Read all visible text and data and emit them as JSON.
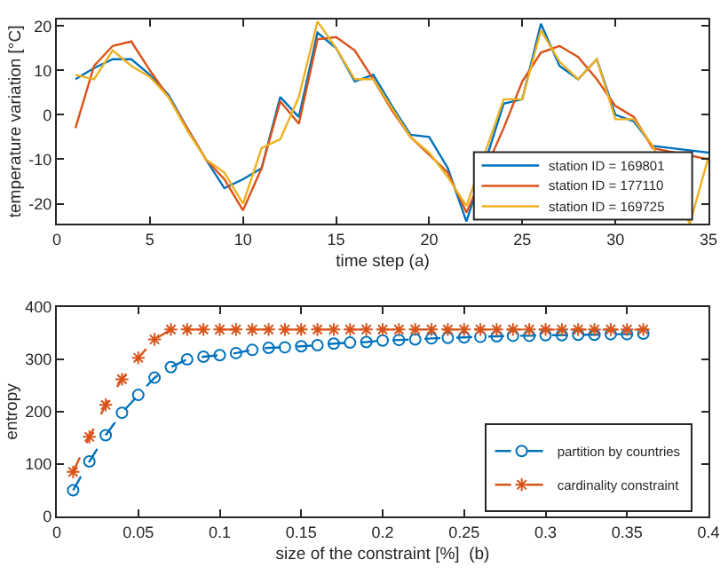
{
  "chart_data": [
    {
      "type": "line",
      "xlabel": "time step (a)",
      "ylabel": "temperature variation [°C]",
      "x": [
        1,
        2,
        3,
        4,
        5,
        6,
        7,
        8,
        9,
        10,
        11,
        12,
        13,
        14,
        15,
        16,
        17,
        18,
        19,
        20,
        21,
        22,
        23,
        24,
        25,
        26,
        27,
        28,
        29,
        30,
        31,
        32,
        33,
        34,
        35
      ],
      "series": [
        {
          "name": "station ID = 169801",
          "color": "#0072bd",
          "values": [
            8,
            10.5,
            12.5,
            12.5,
            9,
            4.5,
            -3,
            -10,
            -16.5,
            -14.5,
            -12,
            4,
            -0.5,
            18.5,
            15,
            7.5,
            9,
            2,
            -4.5,
            -5,
            -12,
            -24,
            null,
            2.5,
            3.5,
            20.5,
            11,
            8,
            12.5,
            0,
            -1.5,
            -7,
            null,
            null,
            -8.5
          ]
        },
        {
          "name": "station ID = 177110",
          "color": "#d95319",
          "values": [
            -3,
            11,
            15.5,
            16.5,
            10,
            4,
            -3,
            -10,
            -14.5,
            -21.5,
            -12,
            3,
            -2,
            17,
            17.5,
            14.5,
            8,
            1,
            -5,
            -9,
            -13,
            -22,
            null,
            -3,
            7.5,
            14,
            15.5,
            13,
            8,
            2,
            -0.5,
            -7.5,
            null,
            null,
            -10
          ]
        },
        {
          "name": "station ID = 169725",
          "color": "#edb120",
          "values": [
            9,
            8,
            14.5,
            11,
            8.5,
            4,
            -3.5,
            -10,
            -13,
            -20,
            -7.5,
            -5.5,
            4,
            21,
            15,
            8,
            8,
            1.5,
            -5,
            -8.5,
            -14,
            -20.5,
            null,
            3.5,
            3.5,
            19,
            12,
            8,
            12.5,
            -1,
            -1,
            -7,
            null,
            -24.5,
            -9.5
          ]
        }
      ],
      "xlim": [
        0,
        35
      ],
      "xticks": [
        0,
        5,
        10,
        15,
        20,
        25,
        30,
        35
      ],
      "ylim": [
        -24.5,
        21.5
      ],
      "yticks": [
        -20,
        -10,
        0,
        10,
        20
      ],
      "grid": false,
      "legend": "bottom right",
      "marker": "none",
      "line_style": "solid"
    },
    {
      "type": "line",
      "xlabel": "size of the constraint [%]  (b)",
      "ylabel": "entropy",
      "x": [
        0.01,
        0.02,
        0.03,
        0.04,
        0.05,
        0.06,
        0.07,
        0.08,
        0.09,
        0.1,
        0.11,
        0.12,
        0.13,
        0.14,
        0.15,
        0.16,
        0.17,
        0.18,
        0.19,
        0.2,
        0.21,
        0.22,
        0.23,
        0.24,
        0.25,
        0.26,
        0.27,
        0.28,
        0.29,
        0.3,
        0.31,
        0.32,
        0.33,
        0.34,
        0.35,
        0.36
      ],
      "series": [
        {
          "name": "partition by countries",
          "color": "#0072bd",
          "marker": "circle",
          "line_style": "dashed",
          "values": [
            50,
            105,
            155,
            198,
            232,
            265,
            285,
            300,
            305,
            308,
            312,
            318,
            322,
            323,
            325,
            327,
            330,
            332,
            333,
            336,
            337,
            338,
            340,
            341,
            342,
            343,
            344,
            345,
            345,
            346,
            346,
            347,
            347,
            348,
            348,
            349
          ]
        },
        {
          "name": "cardinality constraint",
          "color": "#d95319",
          "marker": "cross",
          "line_style": "dashed",
          "values": [
            85,
            152,
            213,
            262,
            303,
            338,
            357,
            357,
            357,
            357,
            357,
            357,
            357,
            357,
            357,
            357,
            357,
            357,
            357,
            357,
            357,
            357,
            357,
            357,
            357,
            357,
            357,
            357,
            357,
            357,
            357,
            357,
            357,
            357,
            357,
            357
          ]
        }
      ],
      "xlim": [
        0,
        0.4
      ],
      "xticks": [
        0,
        0.05,
        0.1,
        0.15,
        0.2,
        0.25,
        0.3,
        0.35,
        0.4
      ],
      "ylim": [
        0,
        400
      ],
      "yticks": [
        0,
        100,
        200,
        300,
        400
      ],
      "grid": false,
      "legend": "bottom right"
    }
  ]
}
